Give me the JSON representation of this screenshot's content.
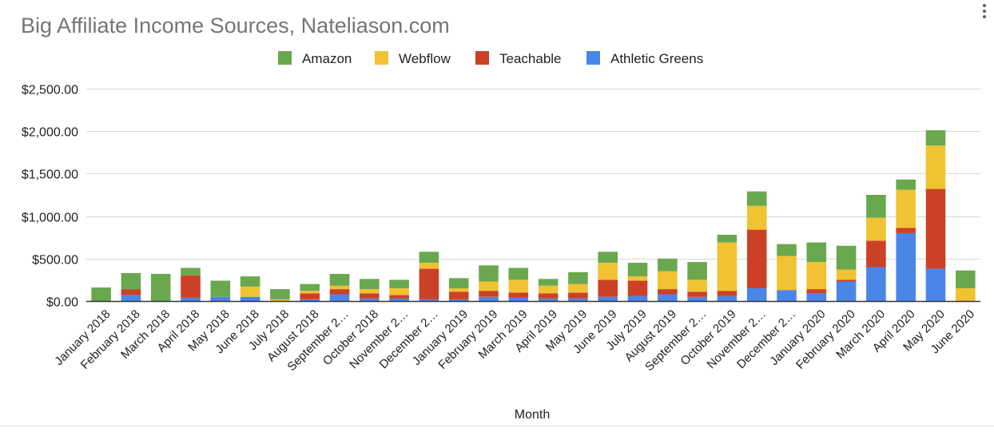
{
  "chart_data": {
    "type": "bar",
    "stacked": true,
    "title": "Big Affiliate Income Sources, Nateliason.com",
    "xlabel": "Month",
    "ylabel": "",
    "ylim": [
      0,
      2500
    ],
    "yticks": [
      0,
      500,
      1000,
      1500,
      2000,
      2500
    ],
    "ytick_labels": [
      "$0.00",
      "$500.00",
      "$1,000.00",
      "$1,500.00",
      "$2,000.00",
      "$2,500.00"
    ],
    "grid": true,
    "legend_position": "top-center",
    "categories": [
      "January 2018",
      "February 2018",
      "March 2018",
      "April 2018",
      "May 2018",
      "June 2018",
      "July 2018",
      "August 2018",
      "September 2018",
      "October 2018",
      "November 2018",
      "December 2018",
      "January 2019",
      "February 2019",
      "March 2019",
      "April 2019",
      "May 2019",
      "June 2019",
      "July 2019",
      "August 2019",
      "September 2019",
      "October 2019",
      "November 2019",
      "December 2019",
      "January 2020",
      "February 2020",
      "March 2020",
      "April 2020",
      "May 2020",
      "June 2020"
    ],
    "category_display": [
      "January 2018",
      "February 2018",
      "March 2018",
      "April 2018",
      "May 2018",
      "June 2018",
      "July 2018",
      "August 2018",
      "September 2…",
      "October 2018",
      "November 2…",
      "December 2…",
      "January 2019",
      "February 2019",
      "March 2019",
      "April 2019",
      "May 2019",
      "June 2019",
      "July 2019",
      "August 2019",
      "September 2…",
      "October 2019",
      "November 2…",
      "December 2…",
      "January 2020",
      "February 2020",
      "March 2020",
      "April 2020",
      "May 2020",
      "June 2020"
    ],
    "series": [
      {
        "name": "Athletic Greens",
        "color": "#4a86e8",
        "values": [
          0,
          70,
          0,
          40,
          50,
          50,
          0,
          20,
          80,
          30,
          30,
          20,
          20,
          50,
          40,
          30,
          30,
          50,
          60,
          80,
          50,
          60,
          150,
          130,
          90,
          230,
          400,
          800,
          380,
          0
        ]
      },
      {
        "name": "Teachable",
        "color": "#cc4125",
        "values": [
          0,
          70,
          0,
          260,
          0,
          0,
          0,
          70,
          60,
          60,
          40,
          360,
          90,
          70,
          60,
          60,
          70,
          200,
          180,
          60,
          60,
          60,
          690,
          0,
          50,
          20,
          310,
          60,
          940,
          0
        ]
      },
      {
        "name": "Webflow",
        "color": "#f1c232",
        "values": [
          0,
          0,
          0,
          0,
          0,
          120,
          20,
          30,
          40,
          50,
          80,
          70,
          40,
          110,
          150,
          90,
          100,
          200,
          50,
          210,
          140,
          570,
          280,
          400,
          320,
          120,
          270,
          450,
          510,
          150
        ]
      },
      {
        "name": "Amazon",
        "color": "#6aa84f",
        "values": [
          160,
          190,
          320,
          90,
          190,
          120,
          120,
          80,
          140,
          120,
          100,
          130,
          120,
          190,
          140,
          80,
          140,
          130,
          160,
          150,
          210,
          90,
          170,
          140,
          230,
          280,
          270,
          120,
          180,
          210
        ]
      }
    ]
  },
  "ui": {
    "menu_icon": "more-vert-icon"
  }
}
